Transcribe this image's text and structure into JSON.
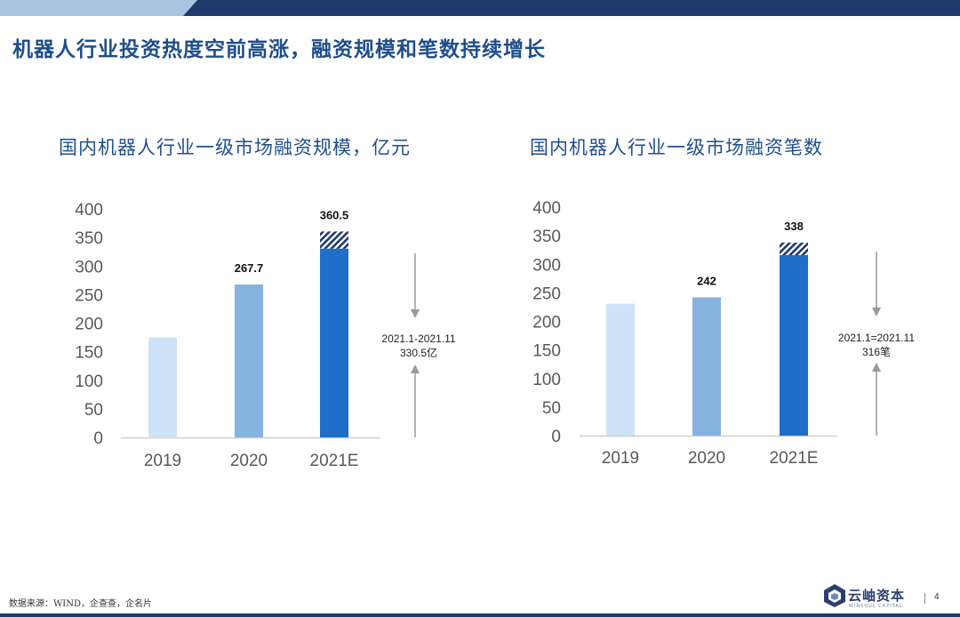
{
  "page": {
    "title": "机器人行业投资热度空前高涨，融资规模和笔数持续增长",
    "source": "数据来源：WIND，企查查，企名片",
    "page_number": "4",
    "logo_text": "云岫资本",
    "logo_subtext": "WINSOUL CAPITAL"
  },
  "colors": {
    "bar_2019": "#cfe3f8",
    "bar_2020": "#86b2e0",
    "bar_2021": "#1f6ec8",
    "hatch": "#1f3a6a",
    "top_bar_light": "#a9c4e0",
    "top_bar_dark": "#1f3a6a"
  },
  "chart_data": [
    {
      "type": "bar",
      "title": "国内机器人行业一级市场融资规模，亿元",
      "categories": [
        "2019",
        "2020",
        "2021E"
      ],
      "values": [
        175,
        267.7,
        360.5
      ],
      "solid_part_2021": 330.5,
      "data_labels": [
        "",
        "267.7",
        "360.5"
      ],
      "ylim": [
        0,
        400
      ],
      "yticks": [
        0,
        50,
        100,
        150,
        200,
        250,
        300,
        350,
        400
      ],
      "grid": false,
      "legend": "none",
      "annotation": [
        "2021.1-2021.11",
        "330.5亿"
      ]
    },
    {
      "type": "bar",
      "title": "国内机器人行业一级市场融资笔数",
      "categories": [
        "2019",
        "2020",
        "2021E"
      ],
      "values": [
        231,
        242,
        338
      ],
      "solid_part_2021": 316,
      "data_labels": [
        "",
        "242",
        "338"
      ],
      "ylim": [
        0,
        400
      ],
      "yticks": [
        0,
        50,
        100,
        150,
        200,
        250,
        300,
        350,
        400
      ],
      "grid": false,
      "legend": "none",
      "annotation": [
        "2021.1=2021.11",
        "316笔"
      ]
    }
  ]
}
